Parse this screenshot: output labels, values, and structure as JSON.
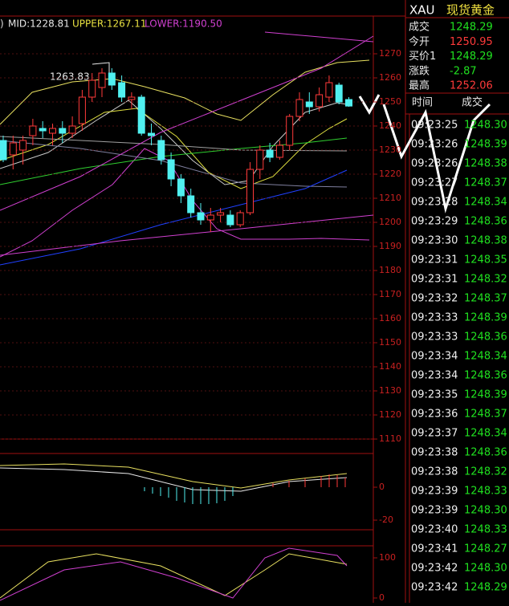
{
  "legend": {
    "prefix": ")",
    "mid": "MID:1228.81",
    "upper": "UPPER:1267.11",
    "lower": "LOWER:1190.50"
  },
  "annotation": "1263.83",
  "price_axis": {
    "ylim": [
      1109,
      1279
    ],
    "yticks": [
      1270,
      1260,
      1250,
      1240,
      1230,
      1220,
      1210,
      1200,
      1190,
      1180,
      1170,
      1160,
      1150,
      1140,
      1130,
      1120,
      1110
    ]
  },
  "candles": [
    [
      1234,
      1236,
      1225,
      1226
    ],
    [
      1228,
      1236,
      1222,
      1233
    ],
    [
      1230,
      1236,
      1224,
      1234
    ],
    [
      1236,
      1243,
      1232,
      1240
    ],
    [
      1239,
      1242,
      1235,
      1238
    ],
    [
      1237,
      1241,
      1232,
      1239
    ],
    [
      1239,
      1242,
      1233,
      1237
    ],
    [
      1237,
      1244,
      1235,
      1240
    ],
    [
      1241,
      1255,
      1238,
      1252
    ],
    [
      1252,
      1262,
      1250,
      1259
    ],
    [
      1256,
      1264,
      1252,
      1262
    ],
    [
      1262,
      1264,
      1255,
      1257
    ],
    [
      1258,
      1261,
      1250,
      1252
    ],
    [
      1251,
      1254,
      1247,
      1252
    ],
    [
      1252,
      1253,
      1236,
      1237
    ],
    [
      1237,
      1241,
      1232,
      1236
    ],
    [
      1234,
      1236,
      1224,
      1226
    ],
    [
      1226,
      1229,
      1215,
      1218
    ],
    [
      1218,
      1220,
      1208,
      1211
    ],
    [
      1211,
      1214,
      1202,
      1204
    ],
    [
      1204,
      1208,
      1199,
      1201
    ],
    [
      1201,
      1206,
      1196,
      1203
    ],
    [
      1203,
      1206,
      1200,
      1204
    ],
    [
      1203,
      1205,
      1198,
      1199
    ],
    [
      1199,
      1205,
      1198,
      1204
    ],
    [
      1204,
      1225,
      1203,
      1222
    ],
    [
      1222,
      1232,
      1218,
      1230
    ],
    [
      1230,
      1233,
      1225,
      1227
    ],
    [
      1227,
      1234,
      1226,
      1232
    ],
    [
      1232,
      1245,
      1230,
      1244
    ],
    [
      1244,
      1254,
      1242,
      1251
    ],
    [
      1250,
      1254,
      1245,
      1248
    ],
    [
      1248,
      1256,
      1246,
      1253
    ],
    [
      1252,
      1261,
      1250,
      1258
    ],
    [
      1257,
      1258,
      1249,
      1250
    ],
    [
      1251,
      1252,
      1248,
      1248.29
    ]
  ],
  "macd_axis": {
    "ylim": [
      -23.4,
      20.5
    ],
    "yticks": [
      0,
      -20
    ]
  },
  "kdj_axis": {
    "ylim": [
      -12,
      130
    ],
    "yticks": [
      100,
      0
    ]
  },
  "quote": {
    "symbol": "XAU",
    "name": "现货黄金",
    "rows": [
      [
        "成交",
        "1248.29"
      ],
      [
        "今开",
        "1250.95"
      ],
      [
        "买价1",
        "1248.29"
      ],
      [
        "涨跌",
        "-2.87"
      ],
      [
        "最高",
        "1252.06"
      ]
    ]
  },
  "trades": {
    "headers": [
      "时间",
      "成交"
    ],
    "rows": [
      [
        "09:23:25",
        "1248.30"
      ],
      [
        "09:23:26",
        "1248.39"
      ],
      [
        "09:23:26",
        "1248.38"
      ],
      [
        "09:23:27",
        "1248.37"
      ],
      [
        "09:23:28",
        "1248.34"
      ],
      [
        "09:23:29",
        "1248.36"
      ],
      [
        "09:23:30",
        "1248.38"
      ],
      [
        "09:23:31",
        "1248.35"
      ],
      [
        "09:23:31",
        "1248.32"
      ],
      [
        "09:23:32",
        "1248.37"
      ],
      [
        "09:23:33",
        "1248.39"
      ],
      [
        "09:23:33",
        "1248.36"
      ],
      [
        "09:23:34",
        "1248.34"
      ],
      [
        "09:23:34",
        "1248.36"
      ],
      [
        "09:23:35",
        "1248.39"
      ],
      [
        "09:23:36",
        "1248.37"
      ],
      [
        "09:23:37",
        "1248.34"
      ],
      [
        "09:23:38",
        "1248.36"
      ],
      [
        "09:23:38",
        "1248.32"
      ],
      [
        "09:23:39",
        "1248.33"
      ],
      [
        "09:23:39",
        "1248.30"
      ],
      [
        "09:23:40",
        "1248.33"
      ],
      [
        "09:23:41",
        "1248.27"
      ],
      [
        "09:23:42",
        "1248.30"
      ],
      [
        "09:23:42",
        "1248.29"
      ]
    ]
  }
}
